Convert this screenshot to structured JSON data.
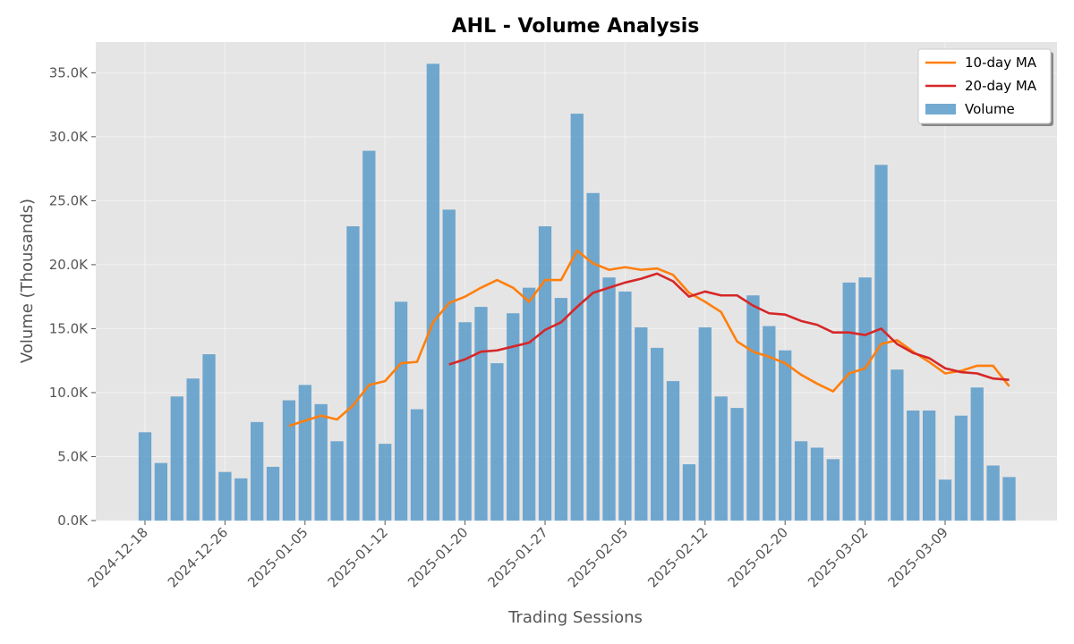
{
  "chart_data": {
    "type": "bar",
    "title": "AHL - Volume Analysis",
    "xlabel": "Trading Sessions",
    "ylabel": "Volume (Thousands)",
    "ylim": [
      0,
      37400
    ],
    "y_ticks": [
      0,
      5000,
      10000,
      15000,
      20000,
      25000,
      30000,
      35000
    ],
    "y_tick_labels": [
      "0.0K",
      "5.0K",
      "10.0K",
      "15.0K",
      "20.0K",
      "25.0K",
      "30.0K",
      "35.0K"
    ],
    "x_ticks": [
      {
        "label": "2024-12-18",
        "index": 0
      },
      {
        "label": "2024-12-26",
        "index": 5
      },
      {
        "label": "2025-01-05",
        "index": 10
      },
      {
        "label": "2025-01-12",
        "index": 15
      },
      {
        "label": "2025-01-20",
        "index": 20
      },
      {
        "label": "2025-01-27",
        "index": 25
      },
      {
        "label": "2025-02-05",
        "index": 30
      },
      {
        "label": "2025-02-12",
        "index": 35
      },
      {
        "label": "2025-02-20",
        "index": 40
      },
      {
        "label": "2025-03-02",
        "index": 45
      },
      {
        "label": "2025-03-09",
        "index": 50
      }
    ],
    "grid": true,
    "legend_position": "top-right",
    "series": [
      {
        "name": "Volume",
        "kind": "bar",
        "color": "#5b9bc9",
        "values": [
          6900,
          4500,
          9700,
          11100,
          13000,
          3800,
          3300,
          7700,
          4200,
          9400,
          10600,
          9100,
          6200,
          23000,
          28900,
          6000,
          17100,
          8700,
          35700,
          24300,
          15500,
          16700,
          12300,
          16200,
          18200,
          23000,
          17400,
          31800,
          25600,
          19000,
          17900,
          15100,
          13500,
          10900,
          4400,
          15100,
          9700,
          8800,
          17600,
          15200,
          13300,
          6200,
          5700,
          4800,
          18600,
          19000,
          27800,
          11800,
          8600,
          8600,
          3200,
          8200,
          10400,
          4300,
          3400
        ]
      },
      {
        "name": "10-day MA",
        "kind": "line",
        "color": "#ff7f0e",
        "values": [
          null,
          null,
          null,
          null,
          null,
          null,
          null,
          null,
          null,
          7400,
          7800,
          8200,
          7900,
          9000,
          10600,
          10900,
          12300,
          12400,
          15500,
          17000,
          17500,
          18200,
          18800,
          18200,
          17100,
          18800,
          18800,
          21100,
          20100,
          19600,
          19800,
          19600,
          19700,
          19200,
          17800,
          17100,
          16300,
          14000,
          13200,
          12800,
          12300,
          11400,
          10700,
          10100,
          11500,
          11900,
          13800,
          14100,
          13200,
          12400,
          11500,
          11700,
          12100,
          12100,
          10500
        ]
      },
      {
        "name": "20-day MA",
        "kind": "line",
        "color": "#d62728",
        "values": [
          null,
          null,
          null,
          null,
          null,
          null,
          null,
          null,
          null,
          null,
          null,
          null,
          null,
          null,
          null,
          null,
          null,
          null,
          null,
          12200,
          12600,
          13200,
          13300,
          13600,
          13900,
          14900,
          15500,
          16700,
          17800,
          18200,
          18600,
          18900,
          19300,
          18700,
          17500,
          17900,
          17600,
          17600,
          16800,
          16200,
          16100,
          15600,
          15300,
          14700,
          14700,
          14500,
          15000,
          13800,
          13100,
          12700,
          11900,
          11600,
          11500,
          11100,
          11000
        ]
      }
    ]
  }
}
